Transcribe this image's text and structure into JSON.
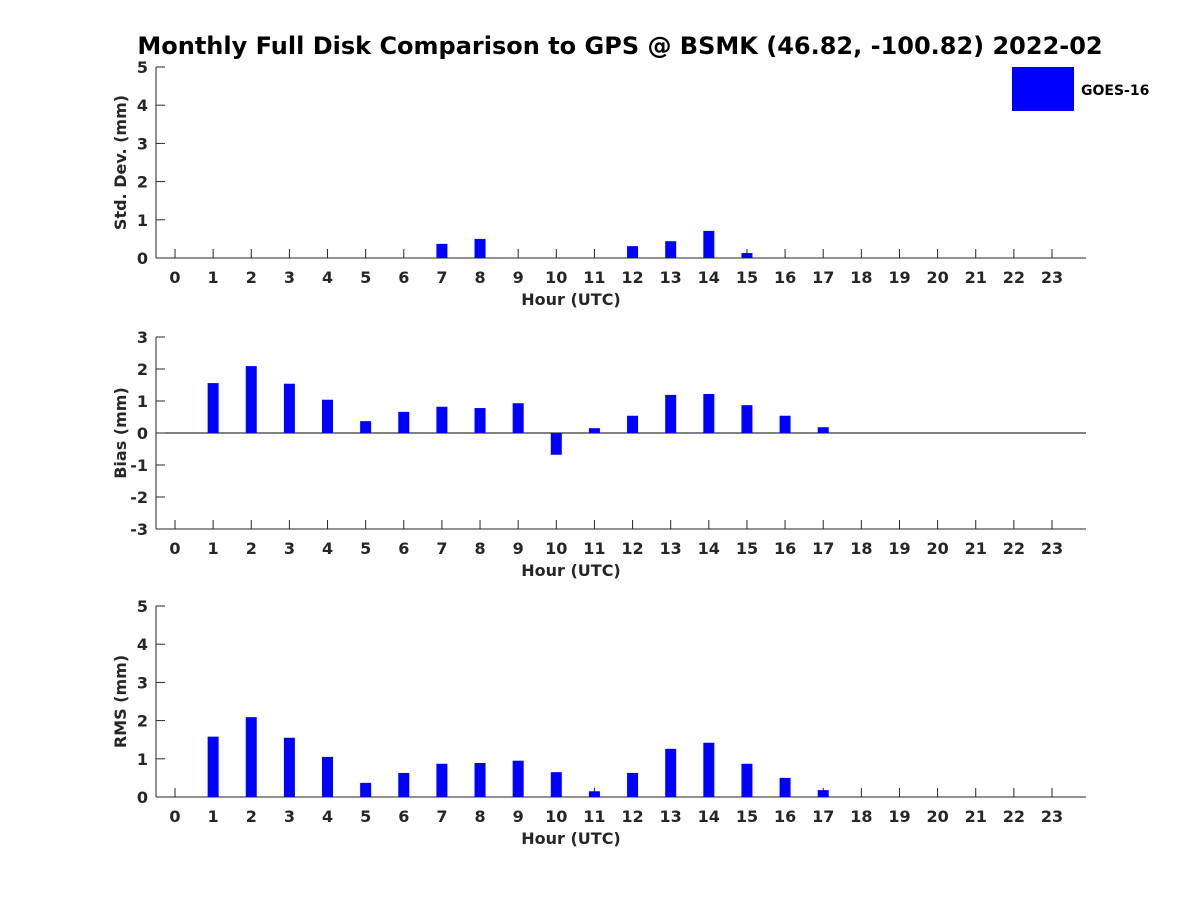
{
  "title": "Monthly Full Disk Comparison to GPS @ BSMK (46.82, -100.82) 2022-02",
  "legend": {
    "label": "GOES-16",
    "placement": "top-right"
  },
  "colors": {
    "bar": "#0000ff",
    "axis": "#262626",
    "zero_line": "#000000"
  },
  "chart_data": [
    {
      "type": "bar",
      "categories": [
        "0",
        "1",
        "2",
        "3",
        "4",
        "5",
        "6",
        "7",
        "8",
        "9",
        "10",
        "11",
        "12",
        "13",
        "14",
        "15",
        "16",
        "17",
        "18",
        "19",
        "20",
        "21",
        "22",
        "23"
      ],
      "series": [
        {
          "name": "GOES-16",
          "values": [
            null,
            null,
            null,
            null,
            null,
            null,
            null,
            0.37,
            0.5,
            null,
            null,
            null,
            0.31,
            0.44,
            0.71,
            0.13,
            null,
            null,
            null,
            null,
            null,
            null,
            null,
            null
          ]
        }
      ],
      "xlabel": "Hour (UTC)",
      "ylabel": "Std. Dev. (mm)",
      "ylim": [
        0,
        5
      ],
      "yticks": [
        "0",
        "1",
        "2",
        "3",
        "4",
        "5"
      ],
      "grid": false
    },
    {
      "type": "bar",
      "categories": [
        "0",
        "1",
        "2",
        "3",
        "4",
        "5",
        "6",
        "7",
        "8",
        "9",
        "10",
        "11",
        "12",
        "13",
        "14",
        "15",
        "16",
        "17",
        "18",
        "19",
        "20",
        "21",
        "22",
        "23"
      ],
      "series": [
        {
          "name": "GOES-16",
          "values": [
            null,
            1.56,
            2.09,
            1.54,
            1.04,
            0.37,
            0.66,
            0.82,
            0.78,
            0.93,
            -0.68,
            0.15,
            0.54,
            1.19,
            1.22,
            0.87,
            0.54,
            0.18,
            null,
            null,
            null,
            null,
            null,
            null
          ]
        }
      ],
      "xlabel": "Hour (UTC)",
      "ylabel": "Bias (mm)",
      "ylim": [
        -3,
        3
      ],
      "yticks": [
        "-3",
        "-2",
        "-1",
        "0",
        "1",
        "2",
        "3"
      ],
      "grid": false
    },
    {
      "type": "bar",
      "categories": [
        "0",
        "1",
        "2",
        "3",
        "4",
        "5",
        "6",
        "7",
        "8",
        "9",
        "10",
        "11",
        "12",
        "13",
        "14",
        "15",
        "16",
        "17",
        "18",
        "19",
        "20",
        "21",
        "22",
        "23"
      ],
      "series": [
        {
          "name": "GOES-16",
          "values": [
            null,
            1.58,
            2.09,
            1.55,
            1.05,
            0.37,
            0.63,
            0.87,
            0.89,
            0.95,
            0.65,
            0.15,
            0.63,
            1.26,
            1.42,
            0.87,
            0.5,
            0.18,
            null,
            null,
            null,
            null,
            null,
            null
          ]
        }
      ],
      "xlabel": "Hour (UTC)",
      "ylabel": "RMS (mm)",
      "ylim": [
        0,
        5
      ],
      "yticks": [
        "0",
        "1",
        "2",
        "3",
        "4",
        "5"
      ],
      "grid": false
    }
  ]
}
